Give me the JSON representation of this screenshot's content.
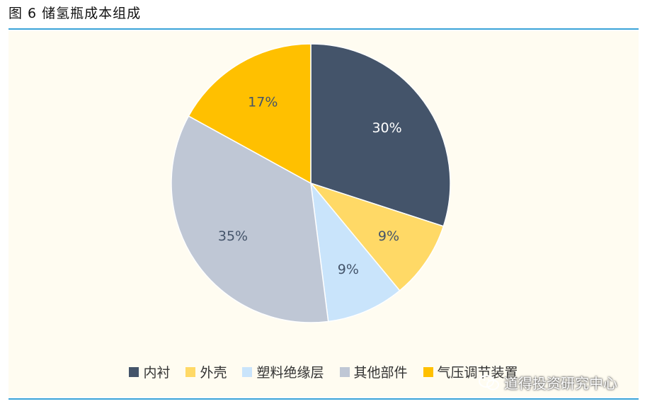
{
  "figure_title": "图 6 储氢瓶成本组成",
  "watermark_text": "道得投资研究中心",
  "colors": {
    "rule": "#3aa3d8",
    "plot_background": "#fffcf1"
  },
  "chart_data": {
    "type": "pie",
    "title": "",
    "start_angle_deg": 0,
    "direction": "clockwise",
    "legend_position": "bottom",
    "slices": [
      {
        "name": "内衬",
        "value": 30,
        "label": "30%",
        "color": "#44546a",
        "label_color": "#ffffff"
      },
      {
        "name": "外壳",
        "value": 9,
        "label": "9%",
        "color": "#ffd966",
        "label_color": "#44546a"
      },
      {
        "name": "塑料绝缘层",
        "value": 9,
        "label": "9%",
        "color": "#c9e4fb",
        "label_color": "#44546a"
      },
      {
        "name": "其他部件",
        "value": 35,
        "label": "35%",
        "color": "#bfc7d5",
        "label_color": "#44546a"
      },
      {
        "name": "气压调节装置",
        "value": 17,
        "label": "17%",
        "color": "#ffc000",
        "label_color": "#44546a"
      }
    ]
  }
}
